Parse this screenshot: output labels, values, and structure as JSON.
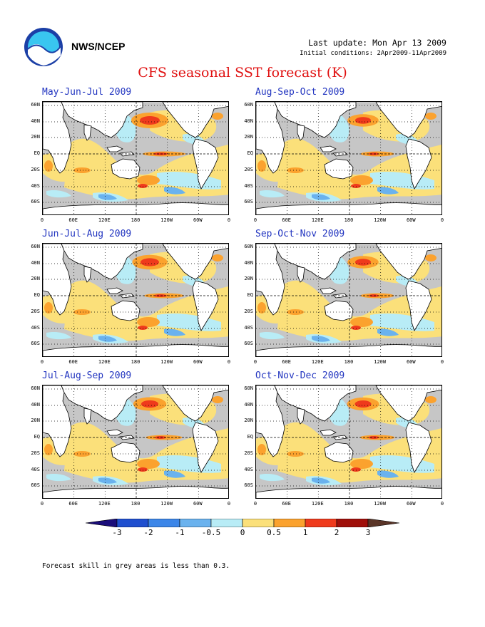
{
  "header": {
    "org": "NWS/NCEP",
    "last_update": "Last update: Mon Apr 13 2009",
    "initial_conditions": "Initial conditions: 2Apr2009-11Apr2009",
    "title": "CFS seasonal SST forecast (K)",
    "logo_icon": "noaa-logo-icon"
  },
  "panels": [
    {
      "title": "May-Jun-Jul 2009",
      "warm": 1.0
    },
    {
      "title": "Aug-Sep-Oct 2009",
      "warm": 0.7
    },
    {
      "title": "Jun-Jul-Aug 2009",
      "warm": 0.9
    },
    {
      "title": "Sep-Oct-Nov 2009",
      "warm": 0.7
    },
    {
      "title": "Jul-Aug-Sep 2009",
      "warm": 0.8
    },
    {
      "title": "Oct-Nov-Dec 2009",
      "warm": 0.75
    }
  ],
  "lat_labels": [
    "60N",
    "40N",
    "20N",
    "EQ",
    "20S",
    "40S",
    "60S"
  ],
  "lon_labels": [
    "0",
    "60E",
    "120E",
    "180",
    "120W",
    "60W",
    "0"
  ],
  "colorbar": {
    "ticks": [
      "-3",
      "-2",
      "-1",
      "-0.5",
      "0",
      "0.5",
      "1",
      "2",
      "3"
    ],
    "colors": [
      "#1a0d7a",
      "#1f4fcf",
      "#3c86e8",
      "#6ab2ee",
      "#b8ecf6",
      "#fbe07a",
      "#fba22e",
      "#ef3a1c",
      "#a00f0a",
      "#5a3528"
    ],
    "skill_gray": "#c6c6c6"
  },
  "note": "Forecast skill in grey areas is less than 0.3."
}
